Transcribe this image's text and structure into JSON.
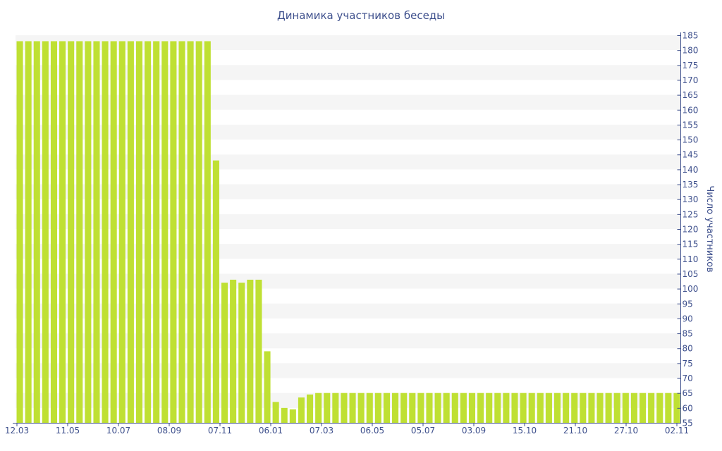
{
  "chart_data": {
    "type": "bar",
    "title": "Динамика участников беседы",
    "xlabel": "",
    "ylabel": "Число участников",
    "ylim": [
      55,
      185
    ],
    "y_ticks": [
      55,
      60,
      65,
      70,
      75,
      80,
      85,
      90,
      95,
      100,
      105,
      110,
      115,
      120,
      125,
      130,
      135,
      140,
      145,
      150,
      155,
      160,
      165,
      170,
      175,
      180,
      185
    ],
    "x_tick_labels": [
      "12.03",
      "11.05",
      "10.07",
      "08.09",
      "07.11",
      "06.01",
      "07.03",
      "06.05",
      "05.07",
      "03.09",
      "15.10",
      "21.10",
      "27.10",
      "02.11"
    ],
    "y_axis_position": "right",
    "grid": "alternating horizontal bands",
    "legend": "none",
    "values": [
      183,
      183,
      183,
      183,
      183,
      183,
      183,
      183,
      183,
      183,
      183,
      183,
      183,
      183,
      183,
      183,
      183,
      183,
      183,
      183,
      183,
      183,
      183,
      143,
      102,
      103,
      102,
      103,
      103,
      79,
      62,
      60,
      59.5,
      63.5,
      64.5,
      65,
      65,
      65,
      65,
      65,
      65,
      65,
      65,
      65,
      65,
      65,
      65,
      65,
      65,
      65,
      65,
      65,
      65,
      65,
      65,
      65,
      65,
      65,
      65,
      65,
      65,
      65,
      65,
      65,
      65,
      65,
      65,
      65,
      65,
      65,
      65,
      65,
      65,
      65,
      65,
      65,
      65,
      65
    ]
  },
  "colors": {
    "bar": "#bfe033",
    "band": "#f5f5f5",
    "axis": "#3d4f8c",
    "text": "#3d4f8c"
  }
}
